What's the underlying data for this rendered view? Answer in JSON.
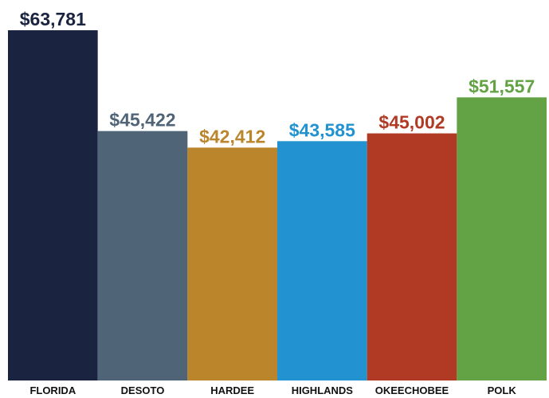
{
  "chart_data": {
    "type": "bar",
    "categories": [
      "FLORIDA",
      "DESOTO",
      "HARDEE",
      "HIGHLANDS",
      "OKEECHOBEE",
      "POLK"
    ],
    "values": [
      63781,
      45422,
      42412,
      43585,
      45002,
      51557
    ],
    "value_labels": [
      "$63,781",
      "$45,422",
      "$42,412",
      "$43,585",
      "$45,002",
      "$51,557"
    ],
    "colors": [
      "#1a2340",
      "#506478",
      "#bb852b",
      "#2292d0",
      "#b13a25",
      "#63a345"
    ]
  }
}
